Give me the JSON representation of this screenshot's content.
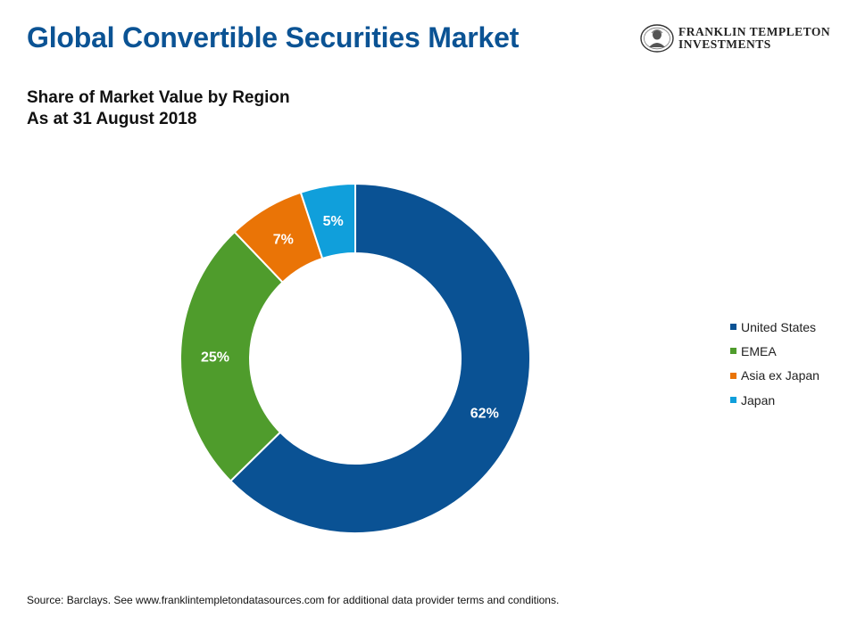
{
  "header": {
    "title": "Global Convertible Securities Market",
    "subtitle_line1": "Share of Market Value by Region",
    "subtitle_line2": "As at 31 August 2018",
    "logo_line1": "FRANKLIN TEMPLETON",
    "logo_line2": "INVESTMENTS",
    "logo_icon": "franklin-portrait-seal-icon"
  },
  "chart_data": {
    "type": "pie",
    "donut": true,
    "legend_position": "right",
    "slices": [
      {
        "name": "United States",
        "value": 62,
        "label": "62%",
        "color": "#0a5294"
      },
      {
        "name": "EMEA",
        "value": 25,
        "label": "25%",
        "color": "#4f9c2c"
      },
      {
        "name": "Asia ex Japan",
        "value": 7,
        "label": "7%",
        "color": "#ea7406"
      },
      {
        "name": "Japan",
        "value": 5,
        "label": "5%",
        "color": "#109fdb"
      }
    ]
  },
  "footer": {
    "source": "Source: Barclays. See www.franklintempletondatasources.com for additional data provider terms and conditions."
  }
}
